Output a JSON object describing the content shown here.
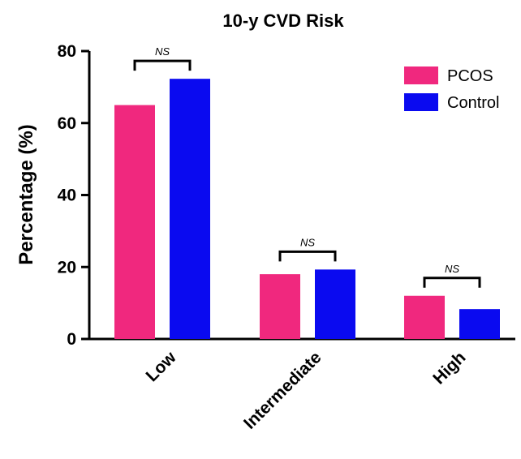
{
  "chart_data": {
    "type": "bar",
    "title": "10-y CVD Risk",
    "xlabel": "",
    "ylabel": "Percentage (%)",
    "ylim": [
      0,
      80
    ],
    "yticks": [
      "0",
      "20",
      "40",
      "60",
      "80"
    ],
    "categories": [
      "Low",
      "Intermediate",
      "High"
    ],
    "series": [
      {
        "name": "PCOS",
        "color": "#f0287e",
        "values": [
          65,
          18,
          12
        ]
      },
      {
        "name": "Control",
        "color": "#0a0af0",
        "values": [
          72.3,
          19.3,
          8.3
        ]
      }
    ],
    "annotations": [
      "NS",
      "NS",
      "NS"
    ],
    "legend_position": "top-right",
    "grid": false
  }
}
